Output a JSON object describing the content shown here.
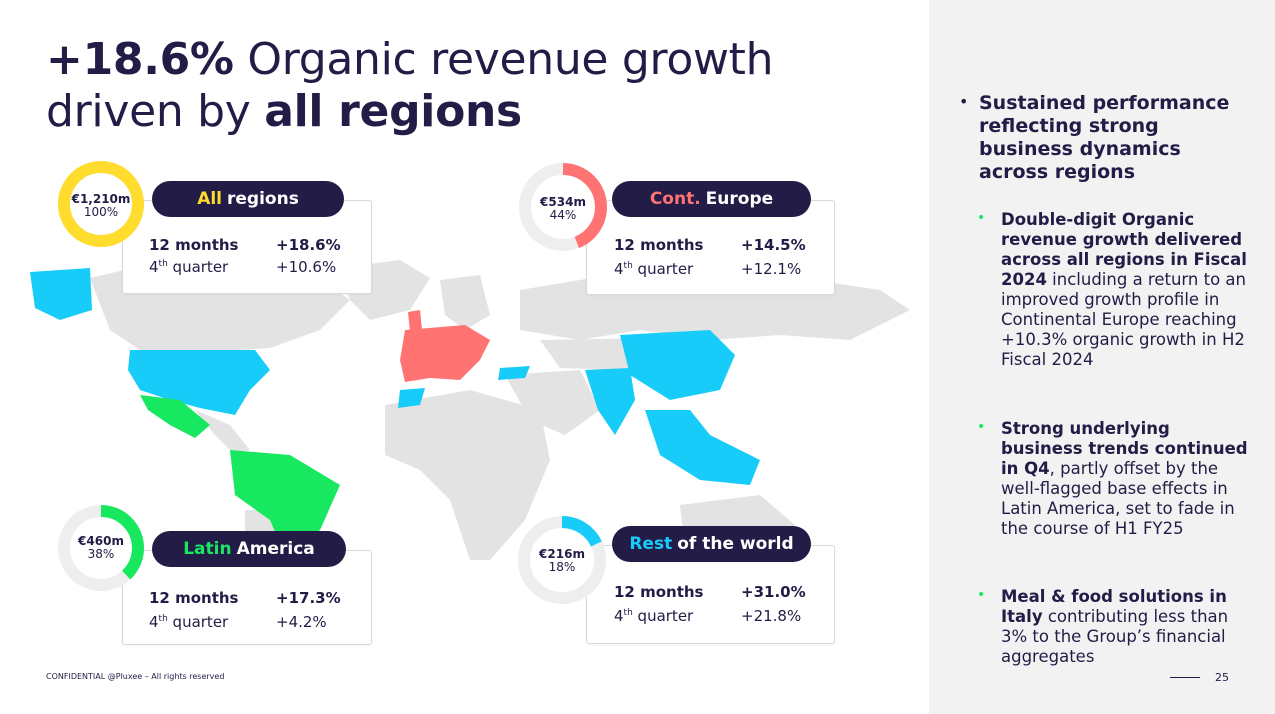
{
  "title": {
    "highlight": "+18.6%",
    "line1_rest": " Organic revenue growth",
    "line2_start": "driven by ",
    "line2_bold": "all regions"
  },
  "colors": {
    "navy": "#221c46",
    "yellow": "#ffdc2e",
    "red": "#ff7373",
    "green": "#17e85f",
    "cyan": "#17ccf9",
    "grey_land": "#e3e3e3"
  },
  "regions": {
    "all": {
      "pill_accent": "All",
      "pill_rest": "regions",
      "value": "€1,210m",
      "pct": "100%",
      "share": 1.0,
      "row1_label": "12 months",
      "row1_value": "+18.6%",
      "row2_label": "4",
      "row2_sup": "th",
      "row2_suffix": " quarter",
      "row2_value": "+10.6%"
    },
    "europe": {
      "pill_accent": "Cont.",
      "pill_rest": "Europe",
      "value": "€534m",
      "pct": "44%",
      "share": 0.44,
      "row1_label": "12 months",
      "row1_value": "+14.5%",
      "row2_label": "4",
      "row2_sup": "th",
      "row2_suffix": " quarter",
      "row2_value": "+12.1%"
    },
    "latam": {
      "pill_accent": "Latin",
      "pill_rest": "America",
      "value": "€460m",
      "pct": "38%",
      "share": 0.38,
      "row1_label": "12 months",
      "row1_value": "+17.3%",
      "row2_label": "4",
      "row2_sup": "th",
      "row2_suffix": " quarter",
      "row2_value": "+4.2%"
    },
    "row": {
      "pill_accent": "Rest",
      "pill_rest": "of the world",
      "value": "€216m",
      "pct": "18%",
      "share": 0.18,
      "row1_label": "12 months",
      "row1_value": "+31.0%",
      "row2_label": "4",
      "row2_sup": "th",
      "row2_suffix": " quarter",
      "row2_value": "+21.8%"
    }
  },
  "sidebar": {
    "main_bullet": "Sustained performance reflecting strong business dynamics across regions",
    "sub1_bold": "Double-digit Organic revenue growth delivered across all regions in Fiscal 2024",
    "sub1_rest": " including a return to an improved growth profile in Continental Europe reaching +10.3% organic growth in H2 Fiscal 2024",
    "sub2_bold": "Strong underlying business trends continued in Q4",
    "sub2_rest": ", partly offset by the well-flagged base effects in Latin America, set to fade in the course of H1 FY25",
    "sub3_bold": "Meal & food solutions in Italy",
    "sub3_rest": " contributing less than 3% to the Group’s financial aggregates"
  },
  "footer": {
    "confidential": "CONFIDENTIAL @Pluxee – All rights reserved",
    "page": "25"
  }
}
